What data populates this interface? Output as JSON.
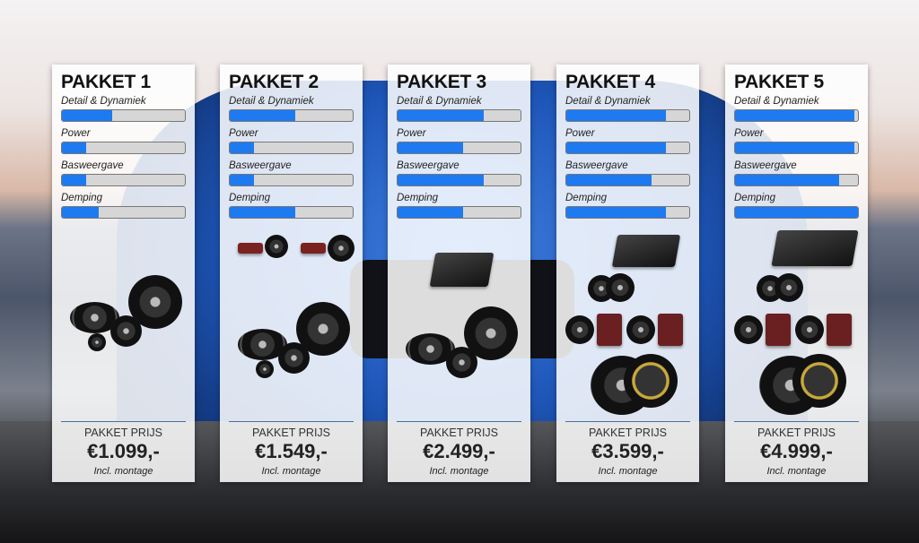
{
  "criteria": [
    "Detail & Dynamiek",
    "Power",
    "Basweergave",
    "Demping"
  ],
  "accent": "#1e7af0",
  "packages": [
    {
      "title": "PAKKET 1",
      "levels": [
        41,
        20,
        20,
        30
      ],
      "price_label": "PAKKET PRIJS",
      "price": "€1.099,-",
      "note": "Incl. montage",
      "amp": "none"
    },
    {
      "title": "PAKKET 2",
      "levels": [
        53,
        20,
        20,
        53
      ],
      "price_label": "PAKKET PRIJS",
      "price": "€1.549,-",
      "note": "Incl. montage",
      "amp": "none"
    },
    {
      "title": "PAKKET 3",
      "levels": [
        70,
        53,
        70,
        53
      ],
      "price_label": "PAKKET PRIJS",
      "price": "€2.499,-",
      "note": "Incl. montage",
      "amp": "small"
    },
    {
      "title": "PAKKET 4",
      "levels": [
        81,
        81,
        69,
        81
      ],
      "price_label": "PAKKET PRIJS",
      "price": "€3.599,-",
      "note": "Incl. montage",
      "amp": "small"
    },
    {
      "title": "PAKKET 5",
      "levels": [
        97,
        97,
        85,
        100
      ],
      "price_label": "PAKKET PRIJS",
      "price": "€4.999,-",
      "note": "Incl. montage",
      "amp": "large"
    }
  ]
}
